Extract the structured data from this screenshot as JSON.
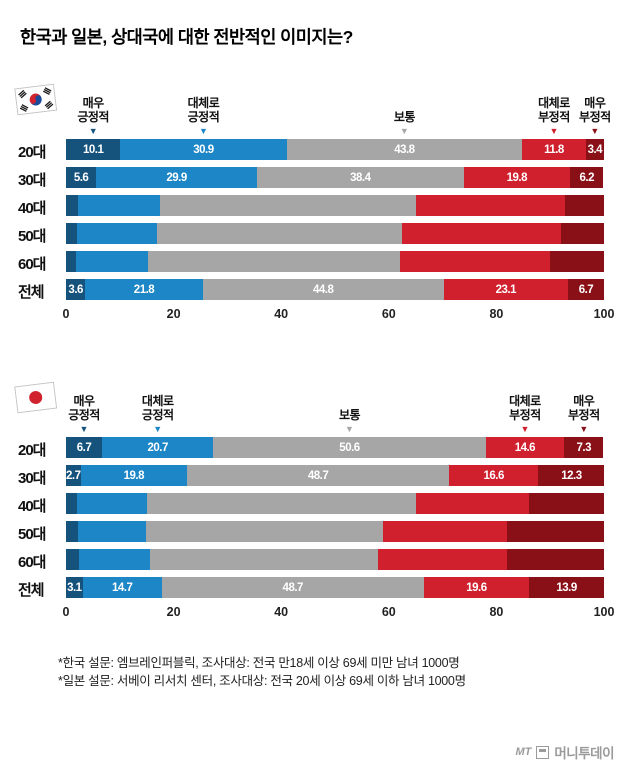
{
  "page": {
    "title": "한국과 일본, 상대국에 대한 전반적인 이미지는?"
  },
  "series_colors": [
    "#15537d",
    "#1c86c6",
    "#a6a6a6",
    "#d0202e",
    "#8a1018"
  ],
  "axis_ticks": [
    0,
    20,
    40,
    60,
    80,
    100
  ],
  "chart_data": [
    {
      "type": "bar",
      "stacked": true,
      "orientation": "horizontal",
      "flag_icon": "korea-flag",
      "categories": [
        "20대",
        "30대",
        "40대",
        "50대",
        "60대",
        "전체"
      ],
      "series": [
        {
          "name": "매우 긍정적",
          "values": [
            10.1,
            5.6,
            2.2,
            2.0,
            1.8,
            3.6
          ]
        },
        {
          "name": "대체로 긍정적",
          "values": [
            30.9,
            29.9,
            15.2,
            15.0,
            13.4,
            21.8
          ]
        },
        {
          "name": "보통",
          "values": [
            43.8,
            38.4,
            47.6,
            45.5,
            46.8,
            44.8
          ]
        },
        {
          "name": "대체로 부정적",
          "values": [
            11.8,
            19.8,
            27.8,
            29.5,
            28.0,
            23.1
          ]
        },
        {
          "name": "매우 부정적",
          "values": [
            3.4,
            6.2,
            7.2,
            8.0,
            10.0,
            6.7
          ]
        }
      ],
      "labeled_categories": [
        "20대",
        "30대",
        "전체"
      ],
      "xlim": [
        0,
        100
      ],
      "legend_position": "top"
    },
    {
      "type": "bar",
      "stacked": true,
      "orientation": "horizontal",
      "flag_icon": "japan-flag",
      "categories": [
        "20대",
        "30대",
        "40대",
        "50대",
        "60대",
        "전체"
      ],
      "series": [
        {
          "name": "매우 긍정적",
          "values": [
            6.7,
            2.7,
            2.0,
            2.2,
            2.4,
            3.1
          ]
        },
        {
          "name": "대체로 긍정적",
          "values": [
            20.7,
            19.8,
            13.0,
            12.6,
            13.2,
            14.7
          ]
        },
        {
          "name": "보통",
          "values": [
            50.6,
            48.7,
            50.0,
            44.2,
            42.4,
            48.7
          ]
        },
        {
          "name": "대체로 부정적",
          "values": [
            14.6,
            16.6,
            21.0,
            23.0,
            24.0,
            19.6
          ]
        },
        {
          "name": "매우 부정적",
          "values": [
            7.3,
            12.3,
            14.0,
            18.0,
            18.0,
            13.9
          ]
        }
      ],
      "labeled_categories": [
        "20대",
        "30대",
        "전체"
      ],
      "xlim": [
        0,
        100
      ],
      "legend_position": "top"
    }
  ],
  "footnotes": [
    "*한국 설문: 엠브레인퍼블릭, 조사대상: 전국 만18세 이상 69세 미만 남녀 1000명",
    "*일본 설문: 서베이 리서치 센터, 조사대상: 전국 20세 이상 69세 이하 남녀 1000명"
  ],
  "logo": {
    "mark": "MT",
    "name": "머니투데이"
  }
}
